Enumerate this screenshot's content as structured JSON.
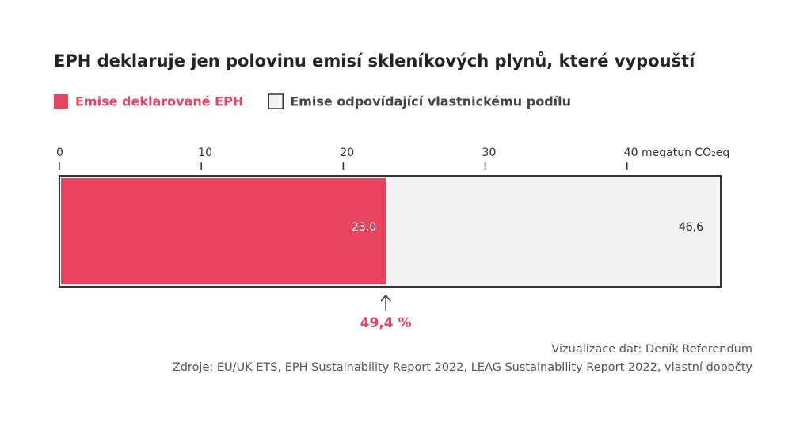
{
  "chart_data": {
    "type": "bar",
    "orientation": "horizontal",
    "title": "EPH deklaruje jen polovinu emisí skleníkových plynů, které vypouští",
    "series": [
      {
        "name": "Emise deklarované EPH",
        "color": "#e8435f",
        "values": [
          23.0
        ],
        "value_labels": [
          "23,0"
        ]
      },
      {
        "name": "Emise odpovídající vlastnickému podílu",
        "color": "#f3f3f3",
        "values": [
          46.6
        ],
        "value_labels": [
          "46,6"
        ]
      }
    ],
    "xlim": [
      0,
      46.6
    ],
    "xticks": [
      0,
      10,
      20,
      30,
      {
        "value": 40,
        "label": "40 megatun CO₂eq"
      }
    ],
    "annotation": "49,4 %",
    "credit": "Vizualizace dat: Deník Referendum",
    "source": "Zdroje: EU/UK ETS, EPH Sustainability Report 2022, LEAG Sustainability Report 2022, vlastní dopočty"
  }
}
